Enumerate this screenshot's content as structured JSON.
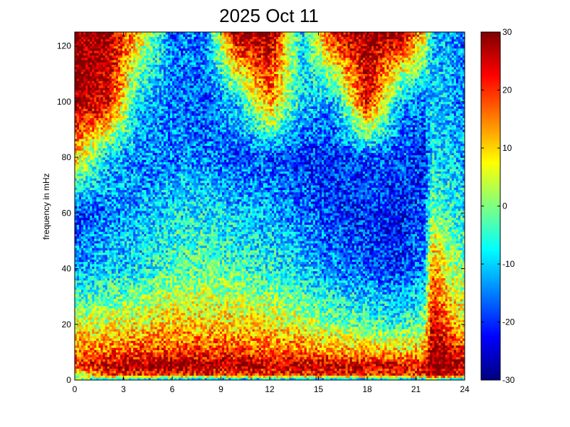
{
  "chart_data": {
    "type": "heatmap",
    "title": "2025 Oct 11",
    "xlabel": "",
    "ylabel": "frequency in mHz",
    "xlim": [
      0,
      24
    ],
    "ylim": [
      0,
      125
    ],
    "xticks": [
      0,
      3,
      6,
      9,
      12,
      15,
      18,
      21,
      24
    ],
    "yticks": [
      0,
      20,
      40,
      60,
      80,
      100,
      120
    ],
    "colorbar": {
      "colormap": "jet",
      "clim": [
        -30,
        30
      ],
      "ticks": [
        30,
        20,
        10,
        0,
        -10,
        -20,
        -30
      ]
    },
    "grid": false,
    "x_hours": [
      0,
      2,
      4,
      6,
      8,
      10,
      12,
      14,
      16,
      18,
      20,
      21.5,
      22,
      23,
      24
    ],
    "y_mhz": [
      0,
      2,
      5,
      10,
      20,
      40,
      60,
      80,
      100,
      125
    ],
    "values": [
      [
        0,
        -15,
        -15,
        -15,
        -15,
        -15,
        -15,
        -15,
        -15,
        -15,
        -15,
        -15,
        -5,
        -10,
        -15
      ],
      [
        0,
        20,
        20,
        20,
        20,
        20,
        20,
        20,
        20,
        20,
        20,
        20,
        30,
        25,
        20
      ],
      [
        20,
        26,
        28,
        30,
        28,
        27,
        27,
        27,
        28,
        26,
        25,
        24,
        30,
        30,
        28
      ],
      [
        16,
        18,
        20,
        20,
        20,
        20,
        18,
        16,
        14,
        12,
        10,
        12,
        30,
        26,
        20
      ],
      [
        5,
        5,
        8,
        10,
        10,
        10,
        8,
        5,
        0,
        -3,
        -5,
        0,
        26,
        16,
        8
      ],
      [
        -12,
        -10,
        -8,
        -3,
        -2,
        -4,
        -6,
        -10,
        -15,
        -18,
        -20,
        -15,
        15,
        5,
        0
      ],
      [
        -20,
        -15,
        -12,
        -8,
        -8,
        -10,
        -12,
        -15,
        -20,
        -20,
        -22,
        -18,
        0,
        -5,
        -8
      ],
      [
        10,
        -10,
        -15,
        -15,
        -15,
        -18,
        -18,
        -20,
        -20,
        -18,
        -18,
        -22,
        -8,
        -10,
        -12
      ],
      [
        30,
        25,
        -10,
        -15,
        -18,
        -10,
        15,
        -10,
        -12,
        25,
        -12,
        -15,
        -10,
        -12,
        -15
      ],
      [
        30,
        30,
        10,
        -15,
        -15,
        30,
        30,
        -10,
        25,
        30,
        30,
        10,
        -10,
        -12,
        -15
      ]
    ]
  }
}
